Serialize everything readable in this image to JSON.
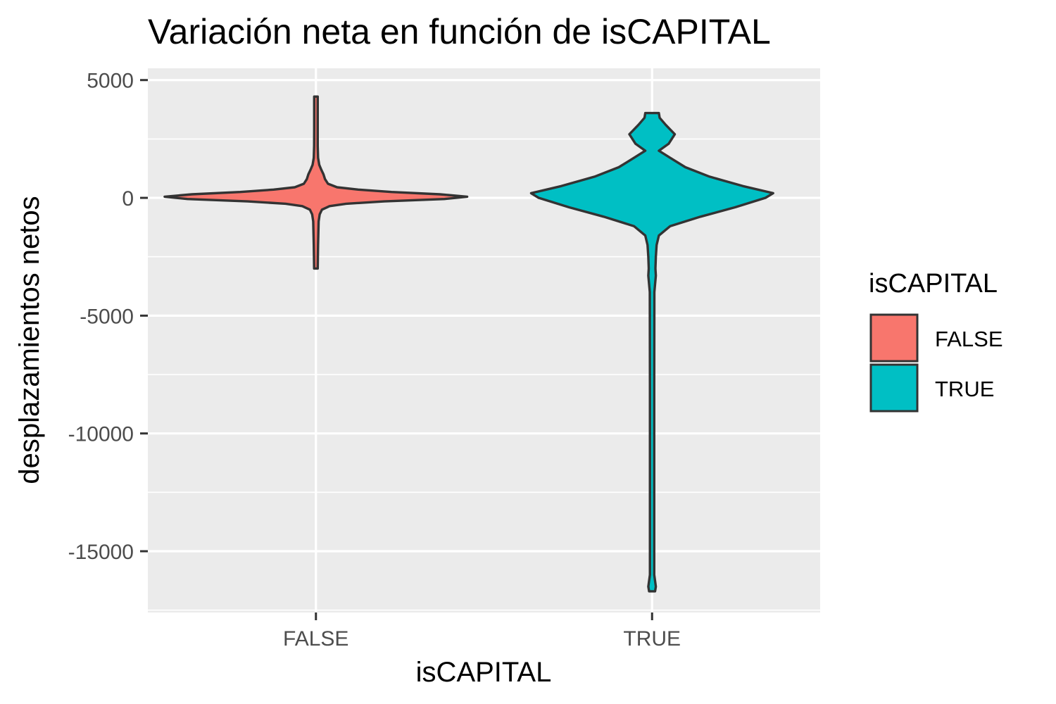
{
  "chart_data": {
    "type": "violin",
    "title": "Variación neta en función de isCAPITAL",
    "xlabel": "isCAPITAL",
    "ylabel": "desplazamientos netos",
    "categories": [
      "FALSE",
      "TRUE"
    ],
    "ylim": [
      -17600,
      5500
    ],
    "y_ticks": [
      5000,
      0,
      -5000,
      -10000,
      -15000
    ],
    "y_tick_labels": [
      "5000",
      "0",
      "-5000",
      "-10000",
      "-15000"
    ],
    "grid": true,
    "panel_background": "#ebebeb",
    "legend": {
      "title": "isCAPITAL",
      "placement": "right",
      "entries": [
        {
          "label": "FALSE",
          "color": "#f8766d"
        },
        {
          "label": "TRUE",
          "color": "#00bfc4"
        }
      ]
    },
    "series": [
      {
        "category": "FALSE",
        "color": "#f8766d",
        "min": -3000,
        "max": 4300,
        "density_profile": [
          [
            -3000,
            0.012
          ],
          [
            -2000,
            0.014
          ],
          [
            -1500,
            0.016
          ],
          [
            -1000,
            0.018
          ],
          [
            -700,
            0.025
          ],
          [
            -500,
            0.04
          ],
          [
            -350,
            0.09
          ],
          [
            -250,
            0.2
          ],
          [
            -150,
            0.45
          ],
          [
            -50,
            0.85
          ],
          [
            50,
            1.0
          ],
          [
            150,
            0.82
          ],
          [
            250,
            0.5
          ],
          [
            350,
            0.28
          ],
          [
            450,
            0.14
          ],
          [
            600,
            0.08
          ],
          [
            800,
            0.06
          ],
          [
            1000,
            0.05
          ],
          [
            1200,
            0.035
          ],
          [
            1400,
            0.022
          ],
          [
            1700,
            0.014
          ],
          [
            2200,
            0.012
          ],
          [
            3000,
            0.01
          ],
          [
            4300,
            0.008
          ]
        ]
      },
      {
        "category": "TRUE",
        "color": "#00bfc4",
        "min": -16700,
        "max": 3600,
        "density_profile": [
          [
            -16700,
            0.02
          ],
          [
            -16500,
            0.025
          ],
          [
            -16000,
            0.014
          ],
          [
            -12000,
            0.014
          ],
          [
            -8000,
            0.014
          ],
          [
            -4000,
            0.015
          ],
          [
            -3300,
            0.025
          ],
          [
            -3000,
            0.022
          ],
          [
            -2500,
            0.025
          ],
          [
            -2000,
            0.03
          ],
          [
            -1600,
            0.045
          ],
          [
            -1200,
            0.12
          ],
          [
            -800,
            0.32
          ],
          [
            -400,
            0.55
          ],
          [
            0,
            0.75
          ],
          [
            200,
            0.8
          ],
          [
            500,
            0.6
          ],
          [
            900,
            0.38
          ],
          [
            1300,
            0.22
          ],
          [
            1700,
            0.12
          ],
          [
            2000,
            0.045
          ],
          [
            2300,
            0.11
          ],
          [
            2700,
            0.15
          ],
          [
            3100,
            0.09
          ],
          [
            3400,
            0.05
          ],
          [
            3600,
            0.045
          ]
        ]
      }
    ]
  }
}
